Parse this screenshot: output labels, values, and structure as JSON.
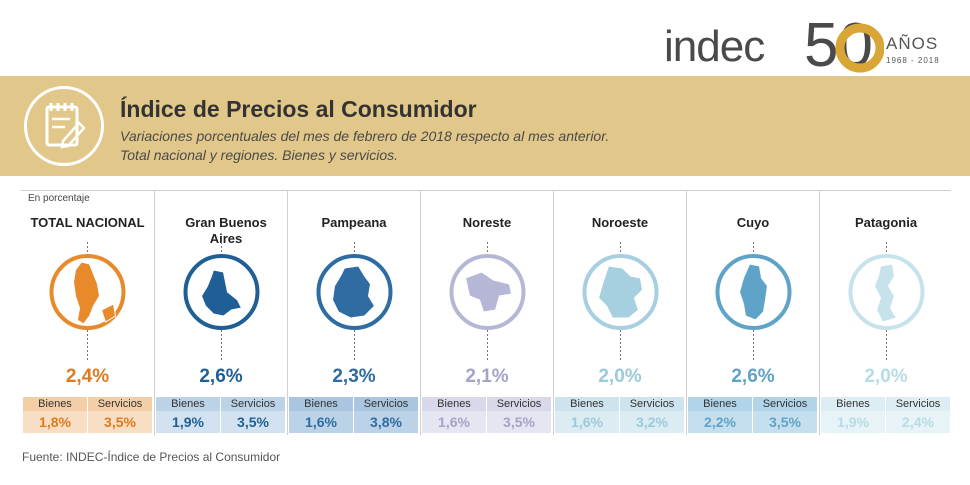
{
  "logo": {
    "brand": "indec",
    "number": "50",
    "anios": "AÑOS",
    "years": "1968 - 2018"
  },
  "header": {
    "title": "Índice de Precios al Consumidor",
    "subtitle_line1": "Variaciones porcentuales del mes de febrero de 2018 respecto al mes anterior.",
    "subtitle_line2": "Total nacional y regiones. Bienes y servicios."
  },
  "unit_label": "En porcentaje",
  "source": "Fuente: INDEC-Índice de Precios al Consumidor",
  "colors": {
    "band": "#e2c78a",
    "regions": [
      "#e8892a",
      "#1f5f95",
      "#2e6ca2",
      "#b6b6d6",
      "#a6cfe0",
      "#5fa3c8",
      "#c6e3ec"
    ]
  },
  "chart_data": {
    "type": "table",
    "sub_labels": [
      "Bienes",
      "Servicios"
    ],
    "regions": [
      {
        "name": "TOTAL NACIONAL",
        "total": "2,4%",
        "bienes": "1,8%",
        "servicios": "3,5%"
      },
      {
        "name": "Gran Buenos Aires",
        "total": "2,6%",
        "bienes": "1,9%",
        "servicios": "3,5%"
      },
      {
        "name": "Pampeana",
        "total": "2,3%",
        "bienes": "1,6%",
        "servicios": "3,8%"
      },
      {
        "name": "Noreste",
        "total": "2,1%",
        "bienes": "1,6%",
        "servicios": "3,5%"
      },
      {
        "name": "Noroeste",
        "total": "2,0%",
        "bienes": "1,6%",
        "servicios": "3,2%"
      },
      {
        "name": "Cuyo",
        "total": "2,6%",
        "bienes": "2,2%",
        "servicios": "3,5%"
      },
      {
        "name": "Patagonia",
        "total": "2,0%",
        "bienes": "1,9%",
        "servicios": "2,4%"
      }
    ]
  }
}
